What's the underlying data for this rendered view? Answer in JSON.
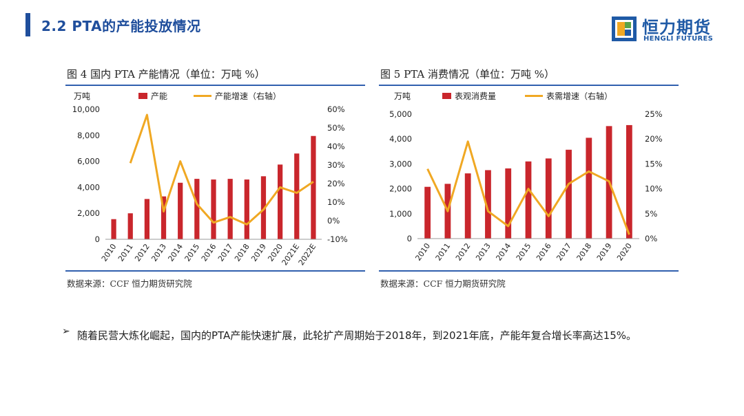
{
  "header": {
    "title": "2.2 PTA的产能投放情况",
    "logo_cn": "恒力期货",
    "logo_en": "HENGLI FUTURES"
  },
  "colors": {
    "accent": "#1f4e9c",
    "bar": "#c9262c",
    "line": "#f0a823"
  },
  "chart_data": [
    {
      "type": "bar",
      "title": "图 4 国内 PTA 产能情况（单位：万吨 %）",
      "ylabel": "万吨",
      "categories": [
        "2010",
        "2011",
        "2012",
        "2013",
        "2014",
        "2015",
        "2016",
        "2017",
        "2018",
        "2019",
        "2020",
        "2021E",
        "2022E"
      ],
      "series": [
        {
          "name": "产能",
          "kind": "bar",
          "axis": "left",
          "values": [
            1550,
            2000,
            3100,
            3300,
            4350,
            4650,
            4600,
            4650,
            4600,
            4850,
            5750,
            6600,
            7950
          ]
        },
        {
          "name": "产能增速（右轴）",
          "kind": "line",
          "axis": "right",
          "values": [
            null,
            31,
            57,
            5,
            32,
            9,
            -1,
            2,
            -2,
            6,
            18,
            15,
            21
          ]
        }
      ],
      "left_ticks": [
        "10,000",
        "8,000",
        "6,000",
        "4,000",
        "2,000",
        "0"
      ],
      "right_ticks": [
        "60%",
        "50%",
        "40%",
        "30%",
        "20%",
        "10%",
        "0%",
        "-10%"
      ],
      "ylim": [
        0,
        10000
      ],
      "y2lim": [
        -10,
        60
      ],
      "source": "数据来源：CCF 恒力期货研究院"
    },
    {
      "type": "bar",
      "title": "图 5 PTA 消费情况（单位：万吨 %）",
      "ylabel": "万吨",
      "categories": [
        "2010",
        "2011",
        "2012",
        "2013",
        "2014",
        "2015",
        "2016",
        "2017",
        "2018",
        "2019",
        "2020"
      ],
      "series": [
        {
          "name": "表观消费量",
          "kind": "bar",
          "axis": "left",
          "values": [
            2080,
            2200,
            2620,
            2750,
            2820,
            3100,
            3220,
            3570,
            4050,
            4520,
            4560
          ]
        },
        {
          "name": "表需增速（右轴）",
          "kind": "line",
          "axis": "right",
          "values": [
            14,
            5.5,
            19.5,
            5.5,
            2.5,
            10,
            4.5,
            11,
            13.5,
            11.5,
            0.8
          ]
        }
      ],
      "left_ticks": [
        "5,000",
        "4,000",
        "3,000",
        "2,000",
        "1,000",
        "0"
      ],
      "right_ticks": [
        "25%",
        "20%",
        "15%",
        "10%",
        "5%",
        "0%"
      ],
      "ylim": [
        0,
        5000
      ],
      "y2lim": [
        0,
        25
      ],
      "source": "数据来源：CCF 恒力期货研究院"
    }
  ],
  "body": {
    "bullet": "➢",
    "text": "随着民营大炼化崛起，国内的PTA产能快速扩展，此轮扩产周期始于2018年，到2021年底，产能年复合增长率高达15%。"
  }
}
